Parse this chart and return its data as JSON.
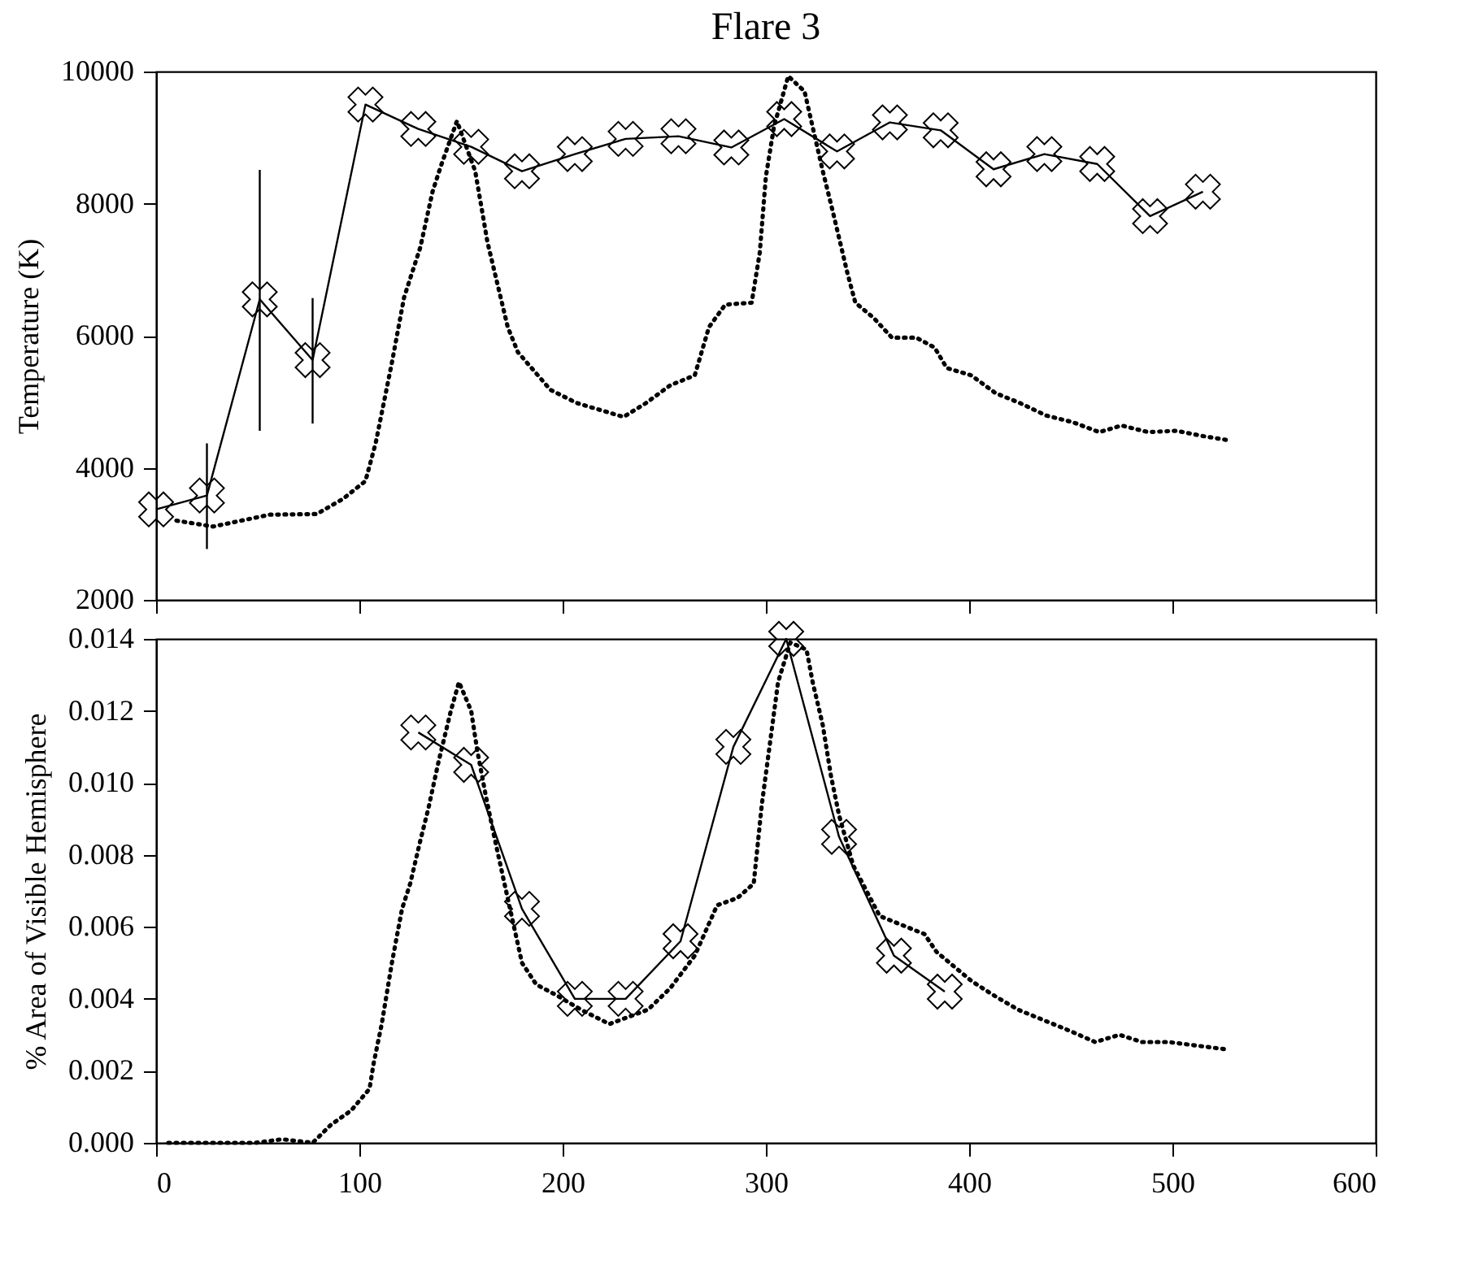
{
  "chart_data": [
    {
      "type": "line",
      "title": "Flare 3",
      "ylabel": "Temperature (K)",
      "xlim": [
        0,
        600
      ],
      "xticks": [
        0,
        100,
        200,
        300,
        400,
        500,
        600
      ],
      "ylim": [
        2000,
        10000
      ],
      "yticks": [
        2000,
        4000,
        6000,
        8000,
        10000
      ],
      "tick_labels": "y",
      "series": [
        {
          "color": "#000000",
          "marker": "cross",
          "line_style": "solid",
          "x": [
            0,
            25,
            51,
            77,
            103,
            129,
            155,
            180,
            206,
            231,
            257,
            283,
            309,
            335,
            361,
            386,
            412,
            437,
            463,
            489,
            515
          ],
          "values": [
            3370,
            3580,
            6550,
            5630,
            9500,
            9130,
            8860,
            8490,
            8750,
            8980,
            9020,
            8850,
            9280,
            8790,
            9230,
            9110,
            8520,
            8750,
            8600,
            7810,
            8180
          ],
          "errors": [
            null,
            [
              2770,
              4370
            ],
            [
              4560,
              8510
            ],
            [
              4670,
              6570
            ],
            null,
            null,
            null,
            null,
            null,
            null,
            null,
            null,
            null,
            null,
            null,
            null,
            null,
            null,
            null,
            null,
            null
          ]
        },
        {
          "color": "#000000",
          "marker": "none",
          "line_style": "dotted",
          "x": [
            10,
            28,
            56,
            79,
            92,
            103,
            108,
            112,
            116,
            122,
            130,
            136,
            140,
            148,
            157,
            163,
            173,
            178,
            194,
            207,
            230,
            241,
            253,
            265,
            272,
            280,
            293,
            297,
            300,
            304,
            311,
            319,
            328,
            333,
            340,
            344,
            353,
            362,
            374,
            383,
            389,
            401,
            413,
            425,
            438,
            451,
            464,
            475,
            488,
            502,
            515,
            529
          ],
          "values": [
            3200,
            3110,
            3290,
            3300,
            3530,
            3800,
            4370,
            4980,
            5590,
            6580,
            7340,
            8180,
            8560,
            9250,
            8490,
            7420,
            6130,
            5750,
            5180,
            4980,
            4770,
            4980,
            5250,
            5400,
            6130,
            6470,
            6500,
            7260,
            8410,
            9170,
            9930,
            9700,
            8490,
            7870,
            6960,
            6500,
            6270,
            5970,
            5970,
            5820,
            5510,
            5400,
            5130,
            4980,
            4790,
            4690,
            4540,
            4640,
            4540,
            4560,
            4480,
            4410
          ]
        }
      ]
    },
    {
      "type": "line",
      "ylabel": "% Area of Visible Hemisphere",
      "xlim": [
        0,
        600
      ],
      "xticks": [
        0,
        100,
        200,
        300,
        400,
        500,
        600
      ],
      "ylim": [
        0,
        0.014
      ],
      "yticks": [
        {
          "value": 0,
          "label": "0.000"
        },
        {
          "value": 0.002,
          "label": "0.002"
        },
        {
          "value": 0.004,
          "label": "0.004"
        },
        {
          "value": 0.006,
          "label": "0.006"
        },
        {
          "value": 0.008,
          "label": "0.008"
        },
        {
          "value": 0.01,
          "label": "0.010"
        },
        {
          "value": 0.012,
          "label": "0.012"
        },
        {
          "value": 0.014,
          "label": "0.014"
        }
      ],
      "series": [
        {
          "color": "#000000",
          "marker": "cross",
          "line_style": "solid",
          "x": [
            129,
            155,
            180,
            206,
            231,
            258,
            284,
            310,
            336,
            363,
            388
          ],
          "values": [
            0.0114,
            0.0105,
            0.0065,
            0.004,
            0.004,
            0.0056,
            0.011,
            0.014,
            0.0085,
            0.0052,
            0.0042
          ]
        },
        {
          "color": "#000000",
          "marker": "none",
          "line_style": "dotted",
          "x": [
            6,
            49,
            62,
            77,
            86,
            96,
            105,
            107,
            111,
            116,
            121,
            125,
            130,
            134,
            139,
            145,
            149,
            155,
            158,
            162,
            166,
            171,
            180,
            187,
            197,
            209,
            223,
            242,
            253,
            265,
            276,
            286,
            294,
            298,
            302,
            306,
            312,
            320,
            323,
            328,
            332,
            336,
            343,
            356,
            378,
            384,
            401,
            412,
            424,
            437,
            450,
            462,
            474,
            485,
            498,
            512,
            526
          ],
          "values": [
            0,
            0,
            0.0001,
            0,
            0.0005,
            0.0009,
            0.0015,
            0.0022,
            0.0033,
            0.005,
            0.0065,
            0.0072,
            0.0084,
            0.0093,
            0.0106,
            0.012,
            0.0128,
            0.012,
            0.0109,
            0.0097,
            0.0086,
            0.0073,
            0.005,
            0.0044,
            0.0041,
            0.0037,
            0.0033,
            0.0037,
            0.0043,
            0.0052,
            0.0066,
            0.0068,
            0.0072,
            0.0094,
            0.0111,
            0.0128,
            0.0139,
            0.0137,
            0.0128,
            0.0116,
            0.0102,
            0.0091,
            0.0077,
            0.0063,
            0.0058,
            0.0053,
            0.0045,
            0.0041,
            0.0037,
            0.0034,
            0.0031,
            0.0028,
            0.003,
            0.0028,
            0.0028,
            0.0027,
            0.0026
          ]
        }
      ]
    }
  ]
}
